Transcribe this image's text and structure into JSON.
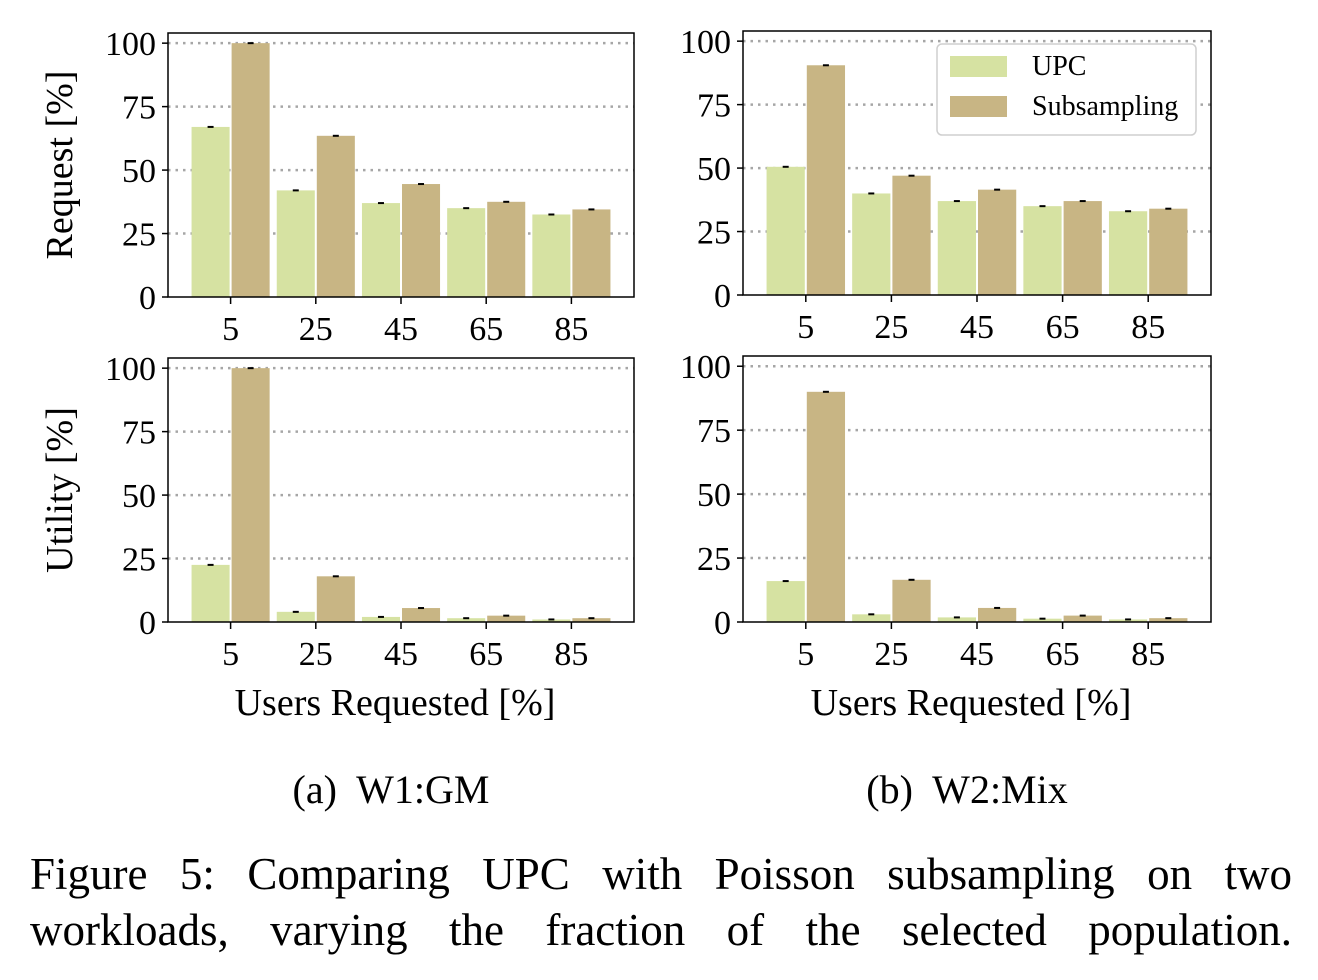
{
  "figure": {
    "caption_line1": "Figure 5: Comparing UPC with Poisson subsampling on two",
    "caption_line2": "workloads, varying the fraction of the selected population."
  },
  "colors": {
    "UPC": "#d6e2a2",
    "Subsampling": "#c8b584",
    "grid": "#a6a6a6"
  },
  "chart_data": [
    {
      "type": "bar",
      "panel": "a",
      "row": "request",
      "subtitle": "",
      "ylabel": "Request [%]",
      "xlabel": "",
      "categories": [
        "5",
        "25",
        "45",
        "65",
        "85"
      ],
      "series": [
        {
          "name": "UPC",
          "values": [
            67,
            42,
            37,
            35,
            32.5
          ]
        },
        {
          "name": "Subsampling",
          "values": [
            100,
            63.5,
            44.5,
            37.5,
            34.5
          ]
        }
      ],
      "yticks": [
        "0",
        "25",
        "50",
        "75",
        "100"
      ],
      "ylim": [
        0,
        104
      ],
      "grid": "horizontal dotted",
      "legend": false
    },
    {
      "type": "bar",
      "panel": "b",
      "row": "request",
      "subtitle": "",
      "ylabel": "",
      "xlabel": "",
      "categories": [
        "5",
        "25",
        "45",
        "65",
        "85"
      ],
      "series": [
        {
          "name": "UPC",
          "values": [
            50.5,
            40,
            37,
            35,
            33
          ]
        },
        {
          "name": "Subsampling",
          "values": [
            90.5,
            47,
            41.5,
            37,
            34
          ]
        }
      ],
      "yticks": [
        "0",
        "25",
        "50",
        "75",
        "100"
      ],
      "ylim": [
        0,
        104
      ],
      "grid": "horizontal dotted",
      "legend": "top-right"
    },
    {
      "type": "bar",
      "panel": "a",
      "row": "utility",
      "subtitle": "(a)  W1:GM",
      "ylabel": "Utility [%]",
      "xlabel": "Users Requested [%]",
      "categories": [
        "5",
        "25",
        "45",
        "65",
        "85"
      ],
      "series": [
        {
          "name": "UPC",
          "values": [
            22.5,
            4,
            2,
            1.5,
            1
          ]
        },
        {
          "name": "Subsampling",
          "values": [
            100,
            18,
            5.5,
            2.5,
            1.5
          ]
        }
      ],
      "yticks": [
        "0",
        "25",
        "50",
        "75",
        "100"
      ],
      "ylim": [
        0,
        104
      ],
      "grid": "horizontal dotted",
      "legend": false
    },
    {
      "type": "bar",
      "panel": "b",
      "row": "utility",
      "subtitle": "(b)  W2:Mix",
      "ylabel": "",
      "xlabel": "Users Requested [%]",
      "categories": [
        "5",
        "25",
        "45",
        "65",
        "85"
      ],
      "series": [
        {
          "name": "UPC",
          "values": [
            16,
            3,
            1.8,
            1.3,
            1
          ]
        },
        {
          "name": "Subsampling",
          "values": [
            90,
            16.5,
            5.5,
            2.5,
            1.5
          ]
        }
      ],
      "yticks": [
        "0",
        "25",
        "50",
        "75",
        "100"
      ],
      "ylim": [
        0,
        104
      ],
      "grid": "horizontal dotted",
      "legend": false
    }
  ]
}
